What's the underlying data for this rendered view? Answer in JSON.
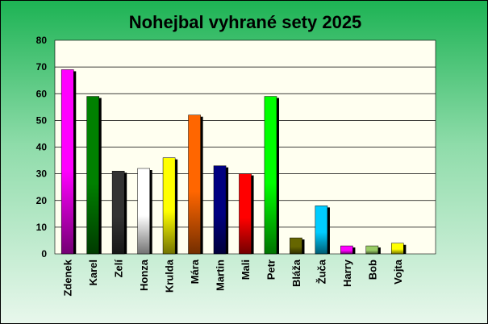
{
  "chart_data": {
    "type": "bar",
    "title": "Nohejbal vyhrané sety 2025",
    "xlabel": "",
    "ylabel": "",
    "ylim": [
      0,
      80
    ],
    "yticks": [
      0,
      10,
      20,
      30,
      40,
      50,
      60,
      70,
      80
    ],
    "grid": true,
    "legend": "none",
    "categories": [
      "Zdenek",
      "Karel",
      "Zelí",
      "Honza",
      "Krulda",
      "Mára",
      "Martin",
      "Mali",
      "Petr",
      "Bláža",
      "Žuča",
      "Harry",
      "Bob",
      "Vojta"
    ],
    "values": [
      69,
      59,
      31,
      32,
      36,
      52,
      33,
      30,
      59,
      6,
      18,
      3,
      3,
      4
    ],
    "colors": [
      "#ff00ff",
      "#008000",
      "#333333",
      "#ffffff",
      "#ffff00",
      "#ff6600",
      "#000080",
      "#ff0000",
      "#00ff00",
      "#666600",
      "#00ccff",
      "#ff00ff",
      "#99cc66",
      "#ffff00"
    ]
  }
}
